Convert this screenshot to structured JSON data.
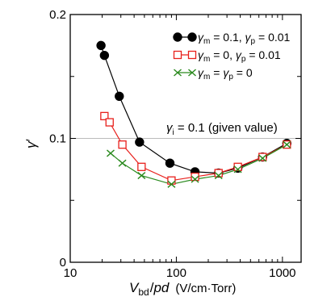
{
  "chart_data": {
    "type": "line",
    "xscale": "log",
    "xlim": [
      10,
      1500
    ],
    "ylim": [
      0,
      0.2
    ],
    "xticks": [
      10,
      100,
      1000
    ],
    "xtick_labels": [
      "10",
      "100",
      "1000"
    ],
    "yticks": [
      0,
      0.1,
      0.2
    ],
    "ytick_labels": [
      "0",
      "0.1",
      "0.2"
    ],
    "xlabel": {
      "v": "V",
      "sub": "bd",
      "slash": "/",
      "pd": "pd",
      "units": "(V/cm·Torr)"
    },
    "ylabel": {
      "main": "γ",
      "prime": "′"
    },
    "reference_line": {
      "y": 0.1,
      "color": "#bbbbbb",
      "label": {
        "gamma": "γ",
        "sub": "i",
        "rest": " = 0.1  (given value)"
      }
    },
    "legend_position": "top-right",
    "series": [
      {
        "marker": "filled-circle",
        "color": "#000000",
        "legend": {
          "g1": "γ",
          "s1": "m",
          "t1": " = 0.1, ",
          "g2": "γ",
          "s2": "p",
          "t2": " = 0.01"
        },
        "x": [
          19.5,
          21,
          29,
          45,
          87,
          150,
          250,
          380,
          650,
          1100
        ],
        "y": [
          0.175,
          0.167,
          0.134,
          0.097,
          0.08,
          0.073,
          0.072,
          0.076,
          0.085,
          0.096
        ]
      },
      {
        "marker": "open-square",
        "color": "#e8201c",
        "legend": {
          "g1": "γ",
          "s1": "m",
          "t1": " = 0, ",
          "g2": "γ",
          "s2": "p",
          "t2": " = 0.01"
        },
        "x": [
          21,
          23.5,
          31,
          47,
          90,
          150,
          250,
          380,
          650,
          1100
        ],
        "y": [
          0.118,
          0.113,
          0.095,
          0.077,
          0.066,
          0.069,
          0.072,
          0.077,
          0.085,
          0.095
        ]
      },
      {
        "marker": "x-cross",
        "color": "#2a8a1e",
        "legend": {
          "g1": "γ",
          "s1": "m",
          "t1": " = ",
          "g2": "γ",
          "s2": "p",
          "t2": " = 0"
        },
        "x": [
          24,
          31,
          47,
          90,
          150,
          250,
          380,
          650,
          1100
        ],
        "y": [
          0.088,
          0.08,
          0.07,
          0.063,
          0.067,
          0.07,
          0.075,
          0.084,
          0.095
        ]
      }
    ]
  }
}
